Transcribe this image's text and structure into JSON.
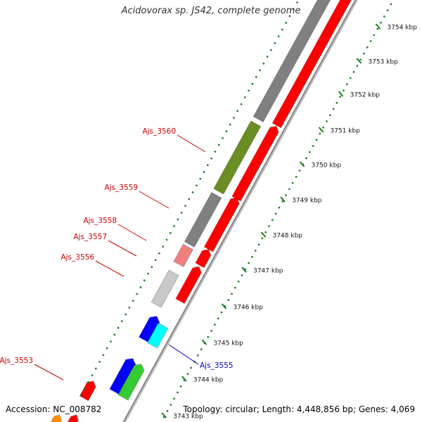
{
  "title": "Acidovorax sp. JS42, complete genome",
  "footer": {
    "accession": "Accession: NC_008782",
    "summary": "Topology: circular; Length: 4,448,856 bp; Genes: 4,069"
  },
  "colors": {
    "red": "#ff0000",
    "pink": "#f08080",
    "gray": "#808080",
    "lightgray": "#c8c8c8",
    "olive": "#6b8e23",
    "blue": "#0000ff",
    "cyan": "#00ffff",
    "green": "#33cc33",
    "orange": "#ff8c00",
    "tick": "#1a7a1a",
    "label_red": "#cc0000",
    "label_blue": "#0000cc"
  },
  "ticks": [
    {
      "label": "3754 kbp"
    },
    {
      "label": "3753 kbp"
    },
    {
      "label": "3752 kbp"
    },
    {
      "label": "3751 kbp"
    },
    {
      "label": "3750 kbp"
    },
    {
      "label": "3749 kbp"
    },
    {
      "label": "3748 kbp"
    },
    {
      "label": "3747 kbp"
    },
    {
      "label": "3746 kbp"
    },
    {
      "label": "3745 kbp"
    },
    {
      "label": "3744 kbp"
    },
    {
      "label": "3743 kbp"
    }
  ],
  "gene_labels": [
    {
      "text": "Ajs_3560",
      "color": "red"
    },
    {
      "text": "Ajs_3559",
      "color": "red"
    },
    {
      "text": "Ajs_3558",
      "color": "red"
    },
    {
      "text": "Ajs_3557",
      "color": "red"
    },
    {
      "text": "Ajs_3556",
      "color": "red"
    },
    {
      "text": "Ajs_3555",
      "color": "blue"
    },
    {
      "text": "Ajs_3553",
      "color": "red"
    }
  ]
}
